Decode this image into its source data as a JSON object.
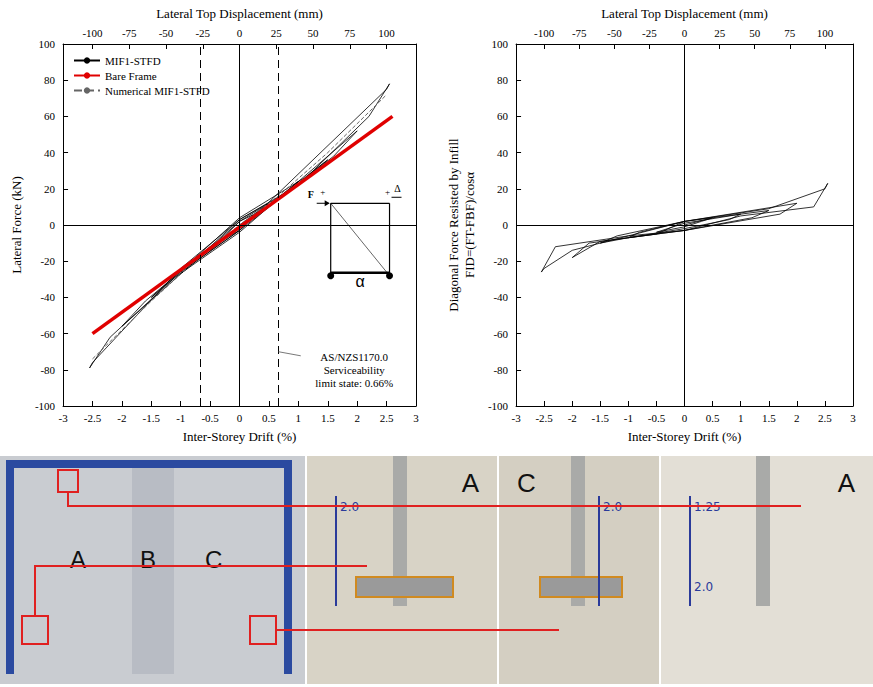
{
  "chart_data": [
    {
      "type": "line",
      "xlabel": "Inter-Storey Drift (%)",
      "x2label": "Lateral Top Displacement (mm)",
      "ylabel": "Lateral Force (kN)",
      "xlim": [
        -3,
        3
      ],
      "xticks": [
        -3,
        -2.5,
        -2,
        -1.5,
        -1,
        -0.5,
        0,
        0.5,
        1,
        1.5,
        2,
        2.5,
        3
      ],
      "x2lim": [
        -120,
        120
      ],
      "x2ticks": [
        -100,
        -75,
        -50,
        -25,
        0,
        25,
        50,
        75,
        100
      ],
      "ylim": [
        -100,
        100
      ],
      "yticks": [
        -100,
        -80,
        -60,
        -40,
        -20,
        0,
        20,
        40,
        60,
        80,
        100
      ],
      "grid": false,
      "legend": "upper left",
      "series": [
        {
          "name": "MIF1-STFD",
          "color": "#000000",
          "line_style": "solid",
          "x": [
            0,
            0.5,
            0.3,
            0,
            -0.5,
            -0.3,
            0,
            1,
            0.7,
            0,
            -1,
            -0.7,
            0,
            1.5,
            1.1,
            0,
            -1.5,
            -1.1,
            0,
            2,
            1.6,
            0.5,
            0,
            -2,
            -1.6,
            -0.5,
            0,
            2.5,
            2.55,
            2.2,
            1,
            0,
            -1,
            -2.5,
            -2.55,
            -2.2,
            -1,
            0
          ],
          "values": [
            0,
            12,
            8,
            2,
            -14,
            -9,
            -2,
            24,
            16,
            3,
            -27,
            -19,
            -3,
            36,
            26,
            4,
            -40,
            -29,
            -4,
            52,
            38,
            10,
            2,
            -56,
            -42,
            -12,
            -3,
            75,
            78,
            60,
            22,
            3,
            -24,
            -76,
            -79,
            -62,
            -26,
            -3
          ]
        },
        {
          "name": "Bare Frame",
          "color": "#e00000",
          "line_style": "thick",
          "x": [
            -2.5,
            2.6
          ],
          "values": [
            -60,
            60
          ]
        },
        {
          "name": "Numerical MIF1-STFD",
          "color": "#666666",
          "line_style": "dashed",
          "x": [
            -2.5,
            -1.5,
            -0.66,
            0,
            0.66,
            1.5,
            2.5
          ],
          "values": [
            -74,
            -42,
            -17,
            0,
            16,
            40,
            72
          ]
        }
      ],
      "limit_lines": [
        -0.66,
        0.66
      ],
      "annotation": [
        "AS/NZS1170.0",
        "Serviceability",
        "limit state: 0.66%"
      ],
      "inset_labels": {
        "force": "F",
        "displacement": "Δ",
        "sign": "+",
        "angle": "α"
      }
    },
    {
      "type": "line",
      "xlabel": "Inter-Storey Drift (%)",
      "x2label": "Lateral Top Displacement (mm)",
      "ylabel": [
        "Diagonal Force Resisted by Infill",
        "FID=(FT-FBF)/cosα"
      ],
      "xlim": [
        -3,
        3
      ],
      "xticks": [
        -3,
        -2.5,
        -2,
        -1.5,
        -1,
        -0.5,
        0,
        0.5,
        1,
        1.5,
        2,
        2.5,
        3
      ],
      "x2lim": [
        -120,
        120
      ],
      "x2ticks": [
        -100,
        -75,
        -50,
        -25,
        0,
        25,
        50,
        75,
        100
      ],
      "ylim": [
        -100,
        100
      ],
      "yticks": [
        -100,
        -80,
        -60,
        -40,
        -20,
        0,
        20,
        40,
        60,
        80,
        100
      ],
      "grid": false,
      "series": [
        {
          "color": "#000000",
          "line_style": "solid",
          "x": [
            0,
            0.5,
            0.3,
            0,
            -0.5,
            -0.3,
            0,
            1,
            0.8,
            0,
            -1,
            -0.8,
            0,
            1.5,
            1.2,
            0,
            -1,
            -1.5,
            -1.2,
            0,
            2,
            1.7,
            0,
            -1.5,
            -2,
            -1.7,
            -0.5,
            0,
            1.5,
            2.5,
            2.55,
            2.3,
            1,
            0,
            -1,
            -2,
            -2.5,
            -2.55,
            -2.3,
            -1,
            0
          ],
          "values": [
            0,
            4,
            2,
            -1,
            -4,
            -2,
            1,
            6,
            3,
            -2,
            -7,
            -4,
            2,
            8,
            4,
            -3,
            -7,
            -10,
            -6,
            2,
            12,
            6,
            -3,
            -9,
            -18,
            -10,
            -5,
            2,
            9,
            20,
            23,
            10,
            5,
            -3,
            -6,
            -14,
            -24,
            -26,
            -12,
            -6,
            2
          ]
        }
      ]
    }
  ],
  "photos": [
    {
      "labels": [
        "A",
        "B",
        "C"
      ]
    },
    {
      "labels": [
        "A"
      ],
      "marks": [
        "2.0"
      ]
    },
    {
      "labels": [
        "C"
      ],
      "marks": [
        "2.0"
      ]
    },
    {
      "labels": [
        "A"
      ],
      "marks": [
        "1.25",
        "2.0"
      ]
    }
  ]
}
